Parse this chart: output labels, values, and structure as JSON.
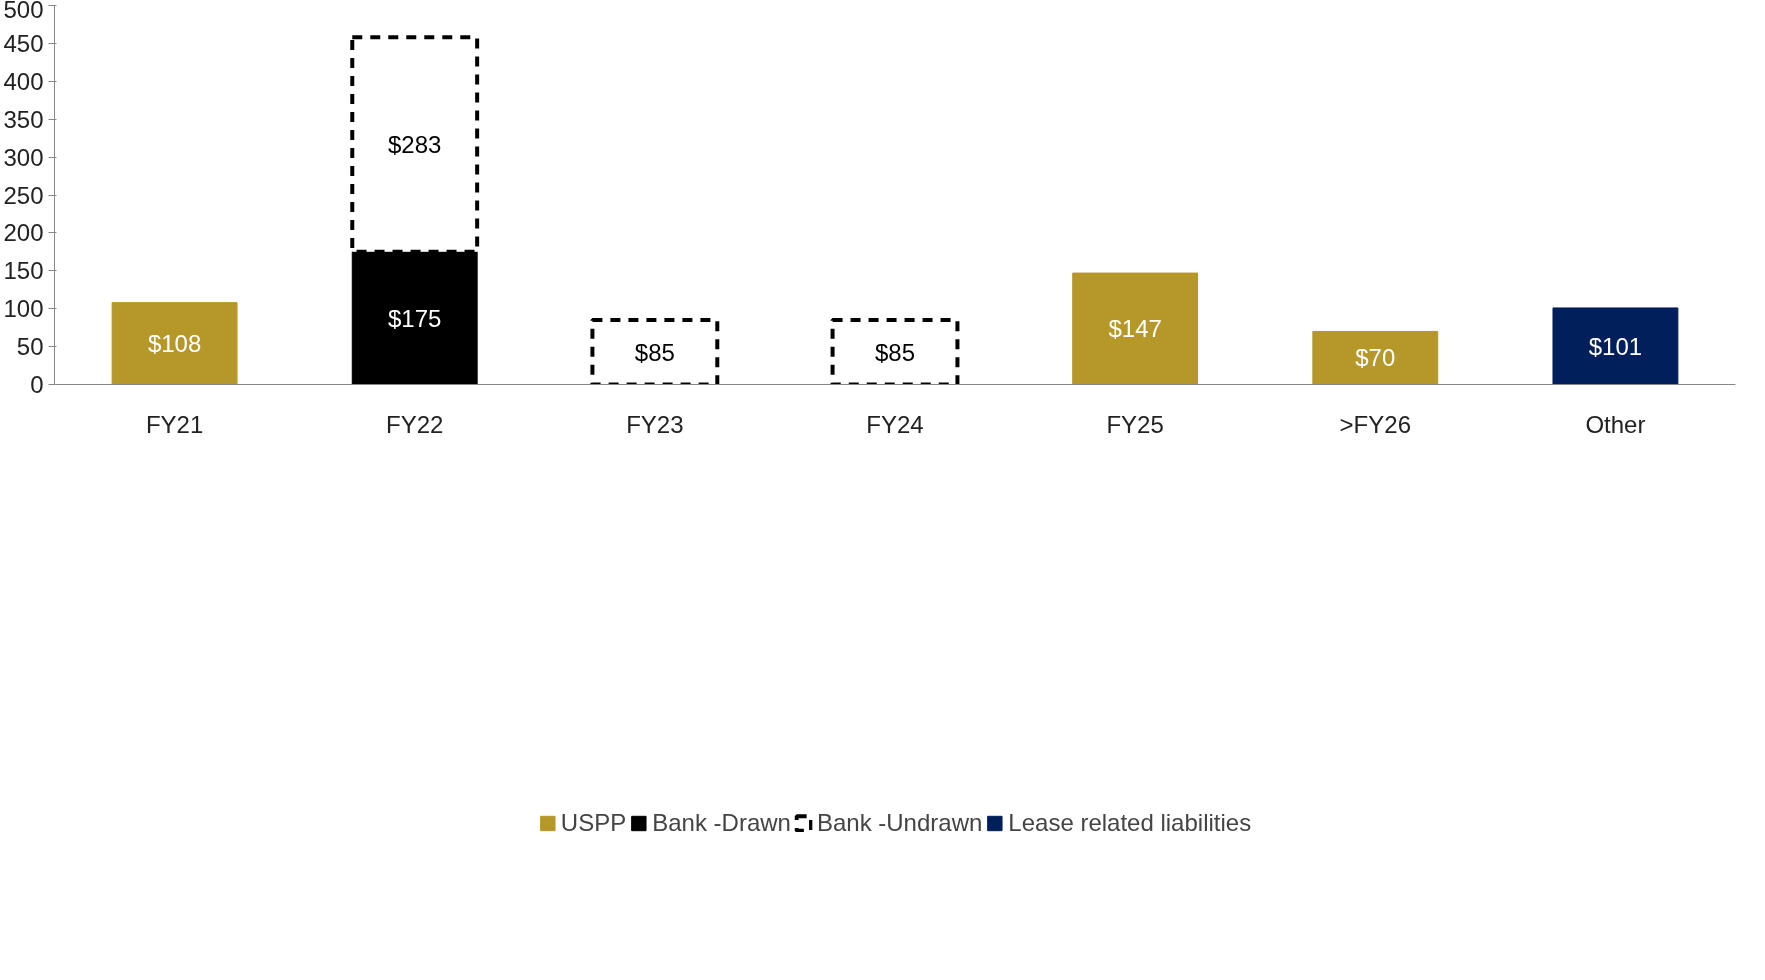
{
  "chart_data": {
    "type": "bar",
    "stacked": true,
    "categories": [
      "FY21",
      "FY22",
      "FY23",
      "FY24",
      "FY25",
      ">FY26",
      "Other"
    ],
    "series": [
      {
        "name": "USPP",
        "color": "#b5972a",
        "values": [
          108,
          0,
          0,
          0,
          147,
          70,
          0
        ],
        "value_labels": [
          "$108",
          null,
          null,
          null,
          "$147",
          "$70",
          null
        ]
      },
      {
        "name": "Bank -Drawn",
        "color": "#000000",
        "values": [
          0,
          175,
          0,
          0,
          0,
          0,
          0
        ],
        "value_labels": [
          null,
          "$175",
          null,
          null,
          null,
          null,
          null
        ]
      },
      {
        "name": "Bank -Undrawn",
        "color": "#000000",
        "line_style": "dashed",
        "values": [
          0,
          283,
          85,
          85,
          0,
          0,
          0
        ],
        "value_labels": [
          null,
          "$283",
          "$85",
          "$85",
          null,
          null,
          null
        ]
      },
      {
        "name": "Lease related liabilities",
        "color": "#001f5b",
        "values": [
          0,
          0,
          0,
          0,
          0,
          0,
          101
        ],
        "value_labels": [
          null,
          null,
          null,
          null,
          null,
          null,
          "$101"
        ]
      }
    ],
    "ylim": [
      0,
      500
    ],
    "yticks": [
      0,
      50,
      100,
      150,
      200,
      250,
      300,
      350,
      400,
      450,
      500
    ],
    "grid": false,
    "legend": "bottom"
  }
}
